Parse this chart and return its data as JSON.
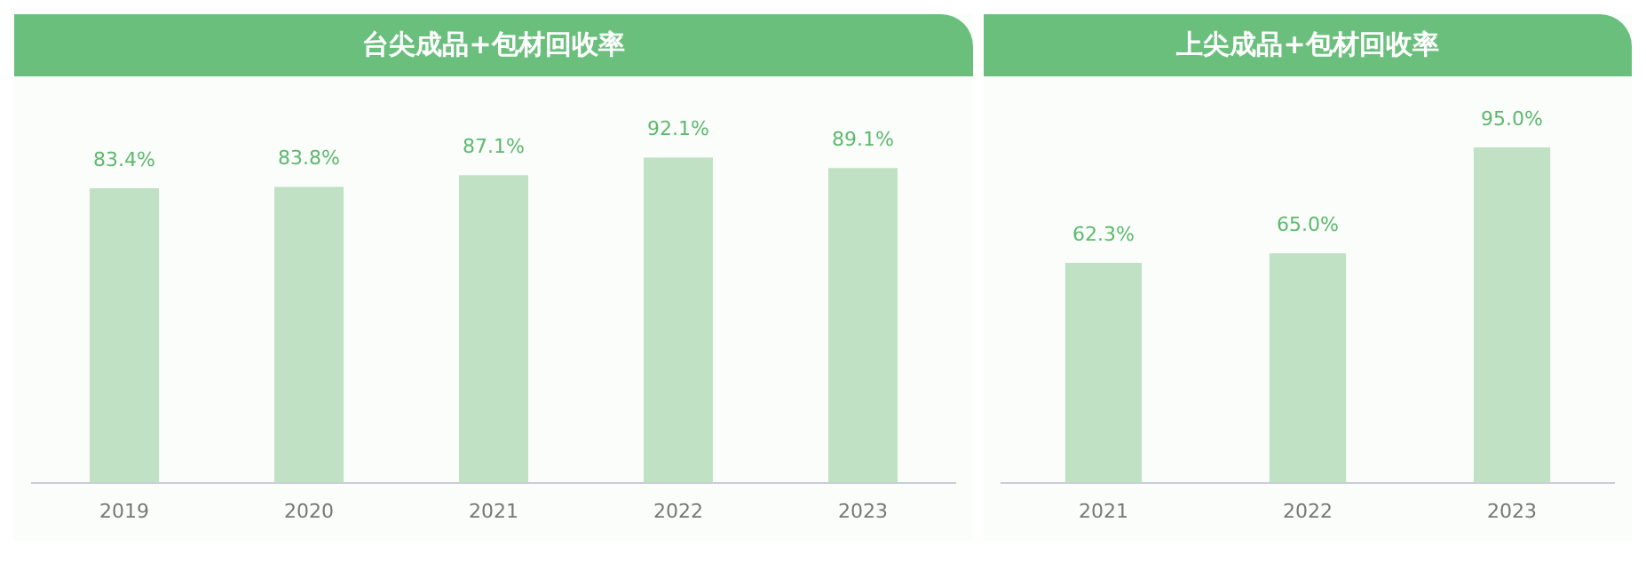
{
  "chart_data": [
    {
      "type": "bar",
      "title": "台尖成品+包材回收率",
      "categories": [
        "2019",
        "2020",
        "2021",
        "2022",
        "2023"
      ],
      "values": [
        83.4,
        83.8,
        87.1,
        92.1,
        89.1
      ],
      "value_labels": [
        "83.4%",
        "83.8%",
        "87.1%",
        "92.1%",
        "89.1%"
      ],
      "color": "#c1e1c5",
      "grid": false,
      "legend": false
    },
    {
      "type": "bar",
      "title": "上尖成品+包材回收率",
      "categories": [
        "2021",
        "2022",
        "2023"
      ],
      "values": [
        62.3,
        65.0,
        95.0
      ],
      "value_labels": [
        "62.3%",
        "65.0%",
        "95.0%"
      ],
      "color": "#c1e1c5",
      "grid": false,
      "legend": false
    }
  ]
}
